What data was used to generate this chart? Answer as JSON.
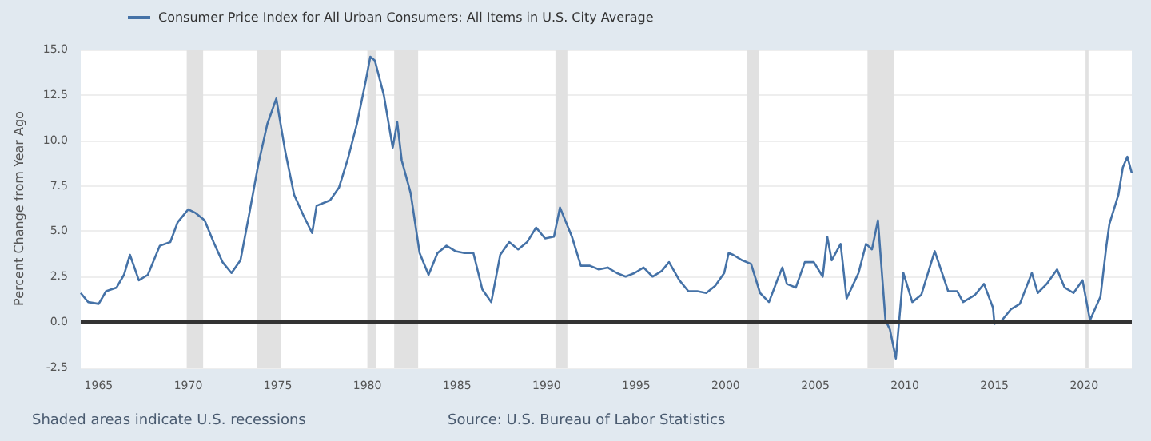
{
  "chart_data": {
    "type": "line",
    "ylabel": "Percent Change from Year Ago",
    "legend": "top left",
    "grid": "y",
    "marker": "none",
    "line_style": "solid",
    "annotations": [
      "Shaded areas indicate U.S. recessions",
      "Source: U.S. Bureau of Labor Statistics"
    ],
    "xlim": [
      "1964-01",
      "2022-09"
    ],
    "xticks": [
      "1965",
      "1970",
      "1975",
      "1980",
      "1985",
      "1990",
      "1995",
      "2000",
      "2005",
      "2010",
      "2015",
      "2020"
    ],
    "ylim": [
      -2.5,
      15
    ],
    "yticks": [
      -2.5,
      {
        "value": 0,
        "label": "0.0"
      },
      2.5,
      {
        "value": 5,
        "label": "5.0"
      },
      7.5,
      {
        "value": 10,
        "label": "10.0"
      },
      12.5,
      {
        "value": 15,
        "label": "15.0"
      }
    ],
    "ref_lines": [
      {
        "axis": "y",
        "value": 0,
        "color": "#333333"
      }
    ],
    "bands": [
      {
        "axis": "x",
        "from": "1969-12",
        "to": "1970-11",
        "color": "#e1e1e1"
      },
      {
        "axis": "x",
        "from": "1973-11",
        "to": "1975-03",
        "color": "#e1e1e1"
      },
      {
        "axis": "x",
        "from": "1980-01",
        "to": "1980-07",
        "color": "#e1e1e1"
      },
      {
        "axis": "x",
        "from": "1981-07",
        "to": "1982-11",
        "color": "#e1e1e1"
      },
      {
        "axis": "x",
        "from": "1990-07",
        "to": "1991-03",
        "color": "#e1e1e1"
      },
      {
        "axis": "x",
        "from": "2001-03",
        "to": "2001-11",
        "color": "#e1e1e1"
      },
      {
        "axis": "x",
        "from": "2007-12",
        "to": "2009-06",
        "color": "#e1e1e1"
      },
      {
        "axis": "x",
        "from": "2020-02",
        "to": "2020-04",
        "color": "#e1e1e1"
      }
    ],
    "series": [
      {
        "name": "Consumer Price Index for All Urban Consumers: All Items in U.S. City Average",
        "color": "#4572a7",
        "x": [
          "1964-01",
          "1964-06",
          "1965-01",
          "1965-06",
          "1966-01",
          "1966-06",
          "1966-10",
          "1967-04",
          "1967-10",
          "1968-06",
          "1969-01",
          "1969-06",
          "1970-01",
          "1970-06",
          "1970-12",
          "1971-06",
          "1971-12",
          "1972-06",
          "1972-12",
          "1973-06",
          "1973-12",
          "1974-06",
          "1974-12",
          "1975-06",
          "1975-12",
          "1976-06",
          "1976-12",
          "1977-03",
          "1977-12",
          "1978-06",
          "1978-12",
          "1979-06",
          "1979-12",
          "1980-03",
          "1980-06",
          "1980-12",
          "1981-06",
          "1981-09",
          "1981-12",
          "1982-06",
          "1982-12",
          "1983-06",
          "1983-12",
          "1984-06",
          "1984-12",
          "1985-06",
          "1985-12",
          "1986-06",
          "1986-12",
          "1987-06",
          "1987-12",
          "1988-06",
          "1988-12",
          "1989-06",
          "1989-12",
          "1990-06",
          "1990-10",
          "1991-06",
          "1991-12",
          "1992-06",
          "1992-12",
          "1993-06",
          "1993-12",
          "1994-06",
          "1994-12",
          "1995-06",
          "1995-12",
          "1996-06",
          "1996-11",
          "1997-06",
          "1997-12",
          "1998-06",
          "1998-12",
          "1999-06",
          "1999-12",
          "2000-03",
          "2000-06",
          "2000-12",
          "2001-06",
          "2001-12",
          "2002-06",
          "2002-12",
          "2003-03",
          "2003-06",
          "2003-12",
          "2004-06",
          "2004-12",
          "2005-06",
          "2005-09",
          "2005-12",
          "2006-06",
          "2006-10",
          "2007-06",
          "2007-11",
          "2008-03",
          "2008-07",
          "2008-12",
          "2009-03",
          "2009-07",
          "2009-12",
          "2010-06",
          "2010-12",
          "2011-09",
          "2012-06",
          "2012-12",
          "2013-04",
          "2013-12",
          "2014-06",
          "2014-12",
          "2015-01",
          "2015-06",
          "2015-12",
          "2016-06",
          "2017-02",
          "2017-06",
          "2017-12",
          "2018-07",
          "2018-12",
          "2019-06",
          "2019-12",
          "2020-05",
          "2020-12",
          "2021-04",
          "2021-06",
          "2021-12",
          "2022-03",
          "2022-06",
          "2022-09"
        ],
        "values": [
          1.6,
          1.1,
          1.0,
          1.7,
          1.9,
          2.6,
          3.7,
          2.3,
          2.6,
          4.2,
          4.4,
          5.5,
          6.2,
          6.0,
          5.6,
          4.4,
          3.3,
          2.7,
          3.4,
          6.0,
          8.7,
          10.9,
          12.3,
          9.4,
          7.0,
          5.9,
          4.9,
          6.4,
          6.7,
          7.4,
          9.0,
          10.9,
          13.3,
          14.6,
          14.4,
          12.5,
          9.6,
          11.0,
          8.9,
          7.1,
          3.8,
          2.6,
          3.8,
          4.2,
          3.9,
          3.8,
          3.8,
          1.8,
          1.1,
          3.7,
          4.4,
          4.0,
          4.4,
          5.2,
          4.6,
          4.7,
          6.3,
          4.7,
          3.1,
          3.1,
          2.9,
          3.0,
          2.7,
          2.5,
          2.7,
          3.0,
          2.5,
          2.8,
          3.3,
          2.3,
          1.7,
          1.7,
          1.6,
          2.0,
          2.7,
          3.8,
          3.7,
          3.4,
          3.2,
          1.6,
          1.1,
          2.4,
          3.0,
          2.1,
          1.9,
          3.3,
          3.3,
          2.5,
          4.7,
          3.4,
          4.3,
          1.3,
          2.7,
          4.3,
          4.0,
          5.6,
          0.1,
          -0.4,
          -2.0,
          2.7,
          1.1,
          1.5,
          3.9,
          1.7,
          1.7,
          1.1,
          1.5,
          2.1,
          0.8,
          -0.1,
          0.1,
          0.7,
          1.0,
          2.7,
          1.6,
          2.1,
          2.9,
          1.9,
          1.6,
          2.3,
          0.1,
          1.4,
          4.2,
          5.4,
          7.0,
          8.5,
          9.1,
          8.2
        ]
      }
    ]
  }
}
